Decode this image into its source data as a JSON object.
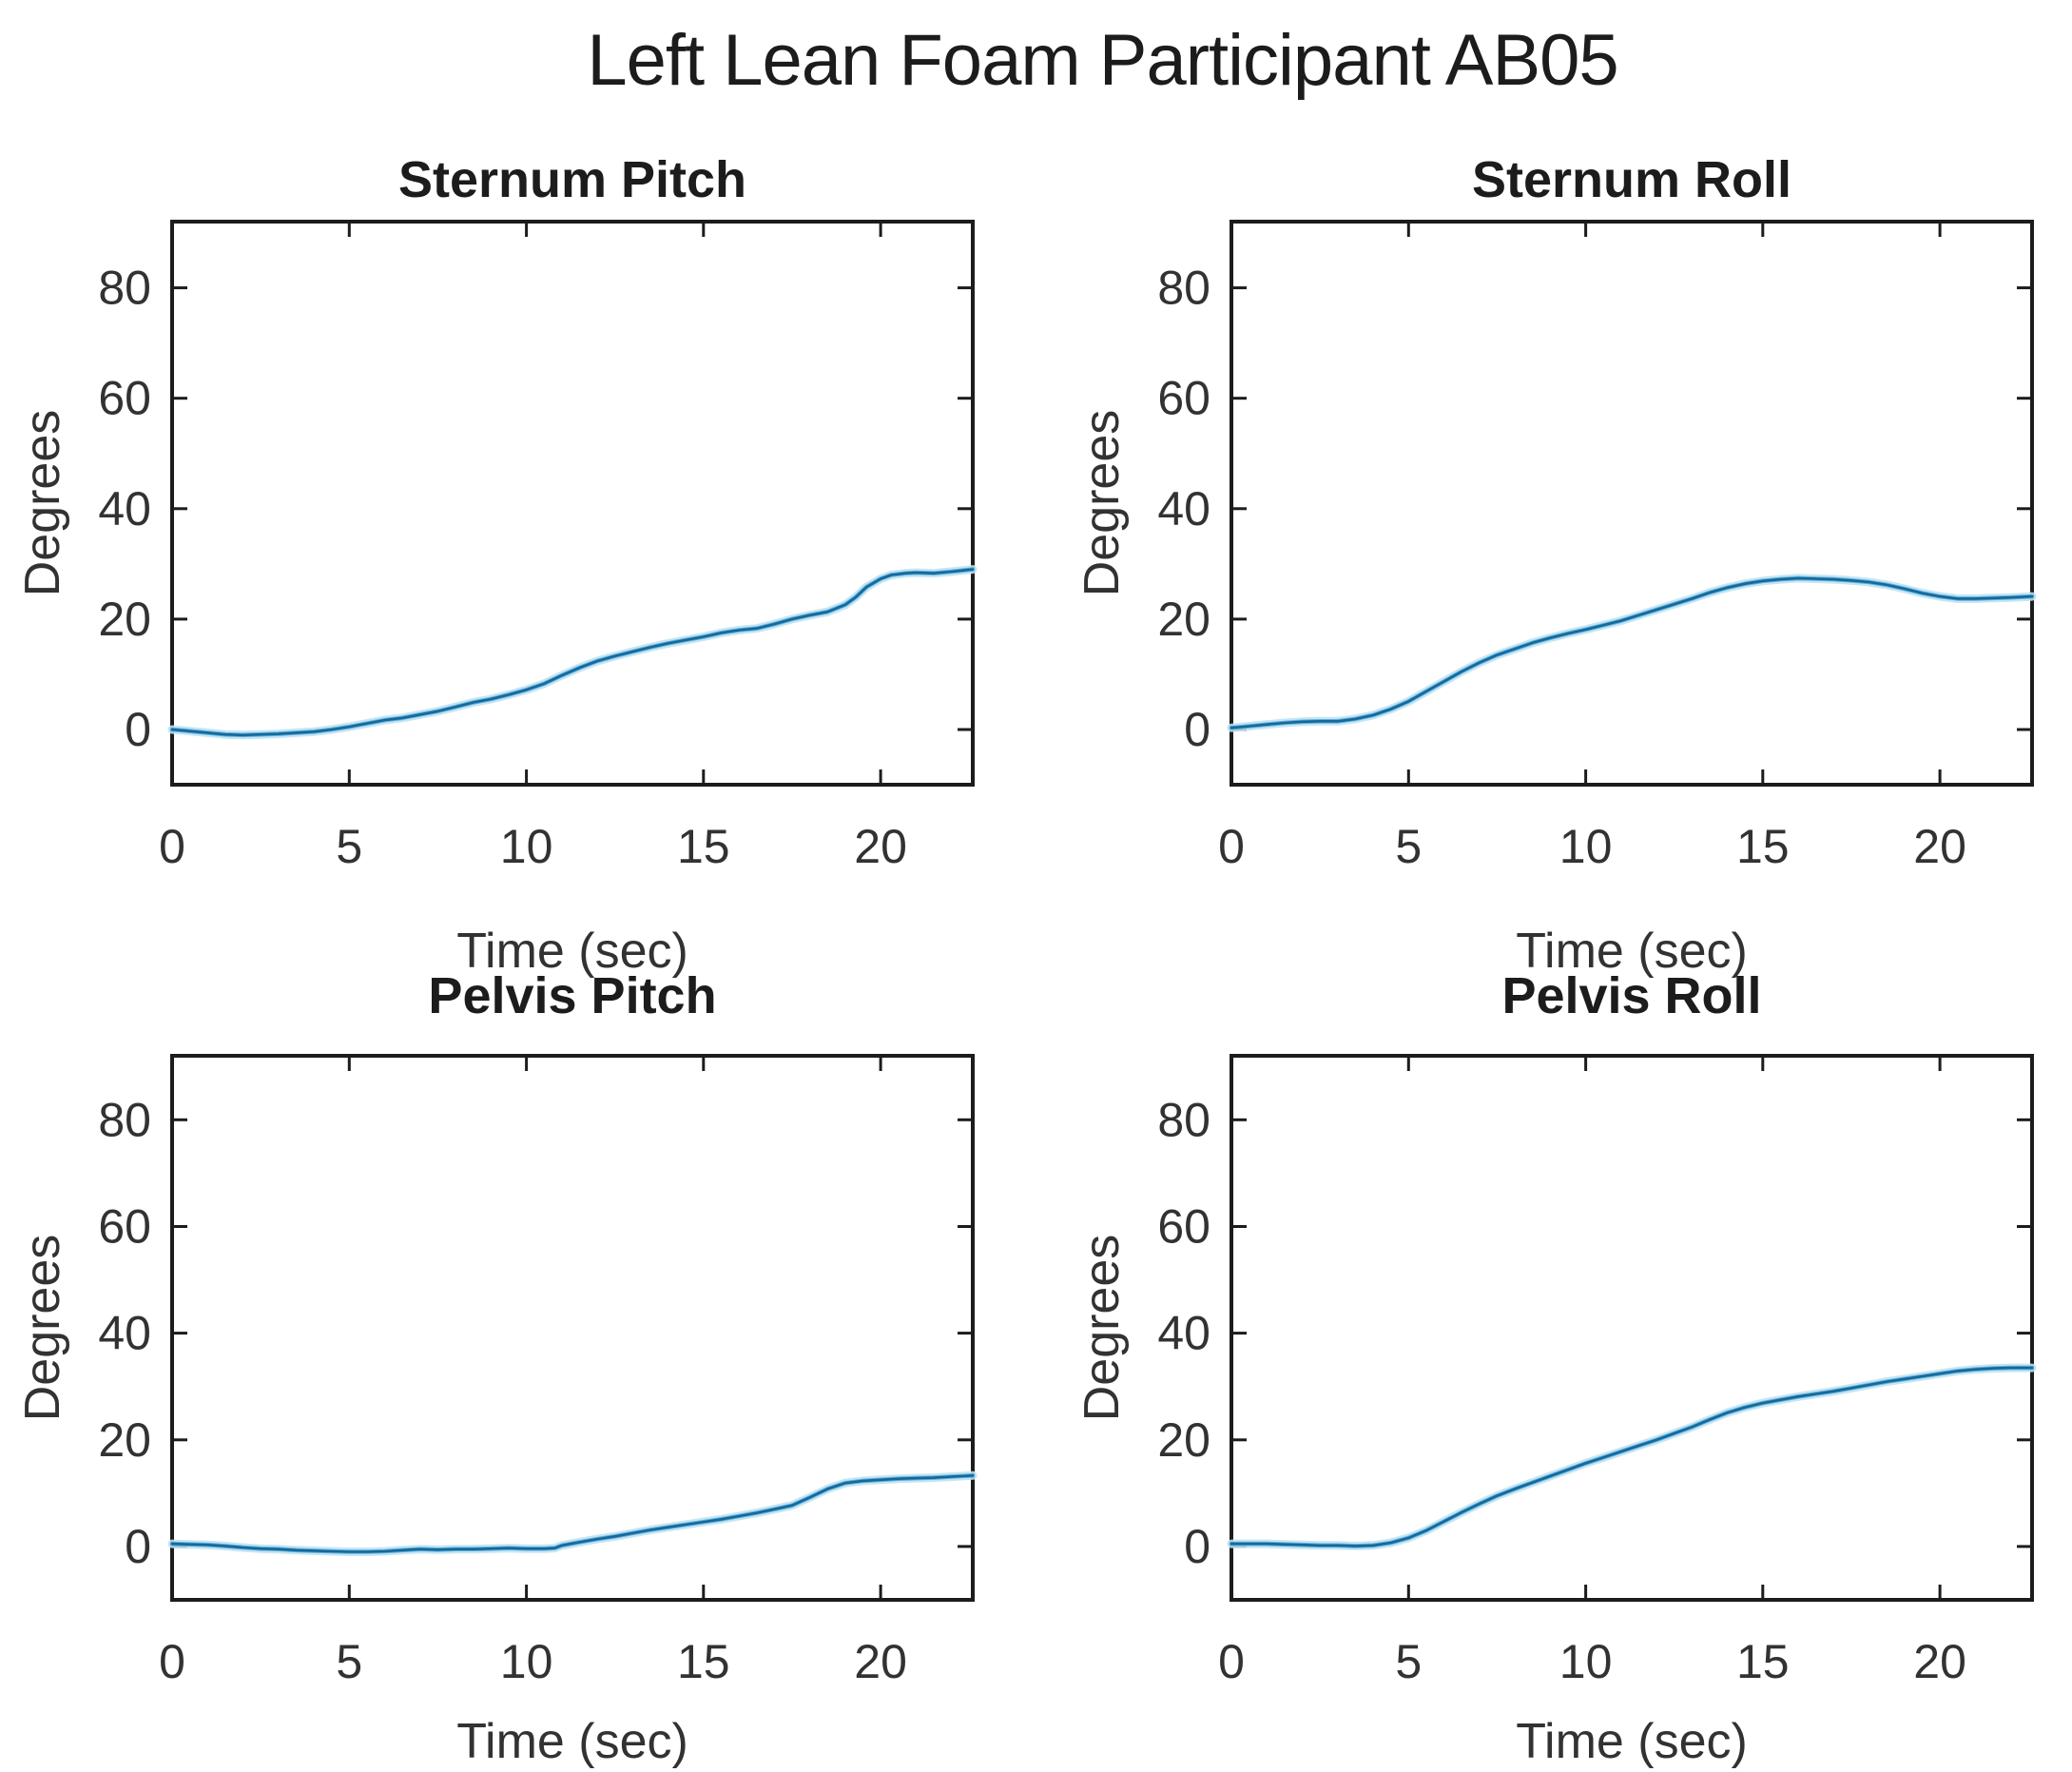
{
  "figure": {
    "title": "Left Lean Foam Participant AB05",
    "background": "#ffffff",
    "layout": {
      "rows": 2,
      "cols": 2
    }
  },
  "palette": {
    "line_core": "#15689c",
    "line_mid": "#4fa8d4",
    "line_halo": "#bfe2f3",
    "axis": "#1c1c1c",
    "text": "#323232",
    "background": "#ffffff"
  },
  "chart_data": [
    {
      "type": "line",
      "title": "Sternum Pitch",
      "xlabel": "Time (sec)",
      "ylabel": "Degrees",
      "xlim": [
        0,
        22.6
      ],
      "ylim": [
        -10,
        92
      ],
      "xticks": [
        0,
        5,
        10,
        15,
        20
      ],
      "yticks": [
        0,
        20,
        40,
        60,
        80
      ],
      "grid": false,
      "legend": null,
      "series": [
        {
          "name": "sternum-pitch",
          "points": [
            [
              0,
              0
            ],
            [
              0.5,
              -0.3
            ],
            [
              1,
              -0.6
            ],
            [
              1.5,
              -0.9
            ],
            [
              2,
              -1
            ],
            [
              2.5,
              -0.9
            ],
            [
              3,
              -0.8
            ],
            [
              3.5,
              -0.6
            ],
            [
              4,
              -0.4
            ],
            [
              4.5,
              0
            ],
            [
              5,
              0.5
            ],
            [
              5.5,
              1.1
            ],
            [
              6,
              1.7
            ],
            [
              6.5,
              2.1
            ],
            [
              7,
              2.7
            ],
            [
              7.5,
              3.3
            ],
            [
              8,
              4.1
            ],
            [
              8.5,
              4.9
            ],
            [
              9,
              5.5
            ],
            [
              9.5,
              6.3
            ],
            [
              10,
              7.2
            ],
            [
              10.5,
              8.3
            ],
            [
              11,
              9.8
            ],
            [
              11.5,
              11.2
            ],
            [
              12,
              12.4
            ],
            [
              12.5,
              13.3
            ],
            [
              13,
              14.1
            ],
            [
              13.5,
              14.9
            ],
            [
              14,
              15.6
            ],
            [
              14.5,
              16.2
            ],
            [
              15,
              16.8
            ],
            [
              15.5,
              17.5
            ],
            [
              16,
              18
            ],
            [
              16.5,
              18.3
            ],
            [
              17,
              19.1
            ],
            [
              17.5,
              20
            ],
            [
              18,
              20.7
            ],
            [
              18.5,
              21.3
            ],
            [
              19,
              22.6
            ],
            [
              19.3,
              24
            ],
            [
              19.6,
              25.8
            ],
            [
              20,
              27.3
            ],
            [
              20.3,
              28
            ],
            [
              20.7,
              28.3
            ],
            [
              21,
              28.4
            ],
            [
              21.5,
              28.3
            ],
            [
              22,
              28.6
            ],
            [
              22.3,
              28.8
            ],
            [
              22.6,
              29
            ]
          ]
        }
      ]
    },
    {
      "type": "line",
      "title": "Sternum Roll",
      "xlabel": "Time (sec)",
      "ylabel": "Degrees",
      "xlim": [
        0,
        22.6
      ],
      "ylim": [
        -10,
        92
      ],
      "xticks": [
        0,
        5,
        10,
        15,
        20
      ],
      "yticks": [
        0,
        20,
        40,
        60,
        80
      ],
      "grid": false,
      "legend": null,
      "series": [
        {
          "name": "sternum-roll",
          "points": [
            [
              0,
              0.3
            ],
            [
              0.5,
              0.6
            ],
            [
              1,
              0.9
            ],
            [
              1.5,
              1.2
            ],
            [
              2,
              1.4
            ],
            [
              2.5,
              1.5
            ],
            [
              3,
              1.5
            ],
            [
              3.5,
              1.9
            ],
            [
              4,
              2.6
            ],
            [
              4.5,
              3.7
            ],
            [
              5,
              5.1
            ],
            [
              5.5,
              6.9
            ],
            [
              6,
              8.7
            ],
            [
              6.5,
              10.5
            ],
            [
              7,
              12.1
            ],
            [
              7.5,
              13.5
            ],
            [
              8,
              14.6
            ],
            [
              8.5,
              15.7
            ],
            [
              9,
              16.6
            ],
            [
              9.5,
              17.4
            ],
            [
              10,
              18.1
            ],
            [
              10.5,
              18.9
            ],
            [
              11,
              19.7
            ],
            [
              11.5,
              20.7
            ],
            [
              12,
              21.7
            ],
            [
              12.5,
              22.7
            ],
            [
              13,
              23.7
            ],
            [
              13.5,
              24.8
            ],
            [
              14,
              25.7
            ],
            [
              14.5,
              26.4
            ],
            [
              15,
              26.9
            ],
            [
              15.5,
              27.2
            ],
            [
              16,
              27.4
            ],
            [
              16.5,
              27.3
            ],
            [
              17,
              27.2
            ],
            [
              17.5,
              27
            ],
            [
              18,
              26.7
            ],
            [
              18.5,
              26.2
            ],
            [
              19,
              25.5
            ],
            [
              19.5,
              24.7
            ],
            [
              20,
              24.1
            ],
            [
              20.5,
              23.7
            ],
            [
              21,
              23.7
            ],
            [
              21.5,
              23.8
            ],
            [
              22,
              23.9
            ],
            [
              22.6,
              24.1
            ]
          ]
        }
      ]
    },
    {
      "type": "line",
      "title": "Pelvis Pitch",
      "xlabel": "Time (sec)",
      "ylabel": "Degrees",
      "xlim": [
        0,
        22.6
      ],
      "ylim": [
        -10,
        92
      ],
      "xticks": [
        0,
        5,
        10,
        15,
        20
      ],
      "yticks": [
        0,
        20,
        40,
        60,
        80
      ],
      "grid": false,
      "legend": null,
      "series": [
        {
          "name": "pelvis-pitch",
          "points": [
            [
              0,
              0.5
            ],
            [
              0.5,
              0.4
            ],
            [
              1,
              0.3
            ],
            [
              1.5,
              0.1
            ],
            [
              2,
              -0.2
            ],
            [
              2.5,
              -0.4
            ],
            [
              3,
              -0.5
            ],
            [
              3.5,
              -0.7
            ],
            [
              4,
              -0.8
            ],
            [
              4.5,
              -0.9
            ],
            [
              5,
              -1
            ],
            [
              5.5,
              -1
            ],
            [
              6,
              -0.9
            ],
            [
              6.5,
              -0.7
            ],
            [
              7,
              -0.5
            ],
            [
              7.5,
              -0.6
            ],
            [
              8,
              -0.5
            ],
            [
              8.5,
              -0.5
            ],
            [
              9,
              -0.4
            ],
            [
              9.5,
              -0.3
            ],
            [
              10,
              -0.4
            ],
            [
              10.5,
              -0.4
            ],
            [
              10.8,
              -0.3
            ],
            [
              11,
              0.2
            ],
            [
              11.5,
              0.8
            ],
            [
              12,
              1.4
            ],
            [
              12.5,
              1.9
            ],
            [
              13,
              2.5
            ],
            [
              13.5,
              3.1
            ],
            [
              14,
              3.6
            ],
            [
              14.5,
              4.1
            ],
            [
              15,
              4.6
            ],
            [
              15.5,
              5.1
            ],
            [
              16,
              5.7
            ],
            [
              16.5,
              6.3
            ],
            [
              17,
              7
            ],
            [
              17.5,
              7.7
            ],
            [
              18,
              9.2
            ],
            [
              18.5,
              10.8
            ],
            [
              19,
              11.9
            ],
            [
              19.5,
              12.3
            ],
            [
              20,
              12.5
            ],
            [
              20.5,
              12.7
            ],
            [
              21,
              12.8
            ],
            [
              21.5,
              12.9
            ],
            [
              22,
              13.1
            ],
            [
              22.6,
              13.3
            ]
          ]
        }
      ]
    },
    {
      "type": "line",
      "title": "Pelvis Roll",
      "xlabel": "Time (sec)",
      "ylabel": "Degrees",
      "xlim": [
        0,
        22.6
      ],
      "ylim": [
        -10,
        92
      ],
      "xticks": [
        0,
        5,
        10,
        15,
        20
      ],
      "yticks": [
        0,
        20,
        40,
        60,
        80
      ],
      "grid": false,
      "legend": null,
      "series": [
        {
          "name": "pelvis-roll",
          "points": [
            [
              0,
              0.5
            ],
            [
              0.5,
              0.5
            ],
            [
              1,
              0.5
            ],
            [
              1.5,
              0.4
            ],
            [
              2,
              0.3
            ],
            [
              2.5,
              0.2
            ],
            [
              3,
              0.2
            ],
            [
              3.5,
              0.1
            ],
            [
              4,
              0.2
            ],
            [
              4.5,
              0.7
            ],
            [
              5,
              1.6
            ],
            [
              5.5,
              3
            ],
            [
              6,
              4.7
            ],
            [
              6.5,
              6.4
            ],
            [
              7,
              8
            ],
            [
              7.5,
              9.5
            ],
            [
              8,
              10.8
            ],
            [
              8.5,
              12
            ],
            [
              9,
              13.2
            ],
            [
              9.5,
              14.4
            ],
            [
              10,
              15.6
            ],
            [
              10.5,
              16.7
            ],
            [
              11,
              17.8
            ],
            [
              11.5,
              18.9
            ],
            [
              12,
              20
            ],
            [
              12.5,
              21.2
            ],
            [
              13,
              22.4
            ],
            [
              13.5,
              23.8
            ],
            [
              14,
              25.1
            ],
            [
              14.5,
              26.1
            ],
            [
              15,
              26.9
            ],
            [
              15.5,
              27.5
            ],
            [
              16,
              28.1
            ],
            [
              16.5,
              28.6
            ],
            [
              17,
              29.1
            ],
            [
              17.5,
              29.7
            ],
            [
              18,
              30.3
            ],
            [
              18.5,
              30.9
            ],
            [
              19,
              31.4
            ],
            [
              19.5,
              31.9
            ],
            [
              20,
              32.4
            ],
            [
              20.5,
              32.9
            ],
            [
              21,
              33.2
            ],
            [
              21.5,
              33.4
            ],
            [
              22,
              33.5
            ],
            [
              22.6,
              33.5
            ]
          ]
        }
      ]
    }
  ]
}
